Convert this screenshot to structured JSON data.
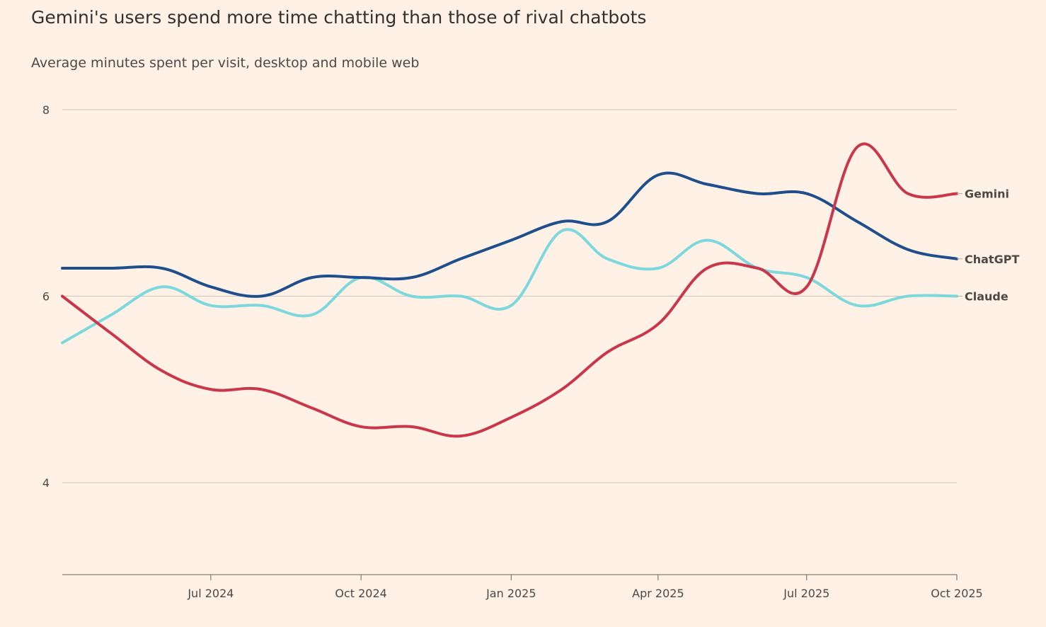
{
  "chart_data": {
    "type": "line",
    "title": "Gemini's users spend more time chatting than those of rival chatbots",
    "subtitle": "Average minutes spent per visit, desktop and mobile web",
    "xlabel": "",
    "ylabel": "",
    "ylim": [
      3,
      8
    ],
    "yticks": [
      {
        "value": 4,
        "label": "4"
      },
      {
        "value": 6,
        "label": "6"
      },
      {
        "value": 8,
        "label": "8"
      }
    ],
    "xlim": [
      "2024-04-01",
      "2025-10-01"
    ],
    "xticks": [
      {
        "date": "2024-07-01",
        "label": "Jul 2024"
      },
      {
        "date": "2024-10-01",
        "label": "Oct 2024"
      },
      {
        "date": "2025-01-01",
        "label": "Jan 2025"
      },
      {
        "date": "2025-04-01",
        "label": "Apr 2025"
      },
      {
        "date": "2025-07-01",
        "label": "Jul 2025"
      },
      {
        "date": "2025-10-01",
        "label": "Oct 2025"
      }
    ],
    "grid": true,
    "legend": "direct labels at line ends",
    "x": [
      "2024-04-01",
      "2024-05-01",
      "2024-06-01",
      "2024-07-01",
      "2024-08-01",
      "2024-09-01",
      "2024-10-01",
      "2024-11-01",
      "2024-12-01",
      "2025-01-01",
      "2025-02-01",
      "2025-03-01",
      "2025-04-01",
      "2025-05-01",
      "2025-06-01",
      "2025-07-01",
      "2025-08-01",
      "2025-09-01",
      "2025-10-01"
    ],
    "series": [
      {
        "name": "ChatGPT",
        "color": "#1f4e8c",
        "values": [
          6.3,
          6.3,
          6.3,
          6.1,
          6.0,
          6.2,
          6.2,
          6.2,
          6.4,
          6.6,
          6.8,
          6.8,
          7.3,
          7.2,
          7.1,
          7.1,
          6.8,
          6.5,
          6.4
        ]
      },
      {
        "name": "Gemini",
        "color": "#c8374a",
        "values": [
          6.0,
          5.6,
          5.2,
          5.0,
          5.0,
          4.8,
          4.6,
          4.6,
          4.5,
          4.7,
          5.0,
          5.4,
          5.7,
          6.3,
          6.3,
          6.1,
          7.6,
          7.1,
          7.1
        ]
      },
      {
        "name": "Claude",
        "color": "#7dd8dd",
        "values": [
          5.5,
          5.8,
          6.1,
          5.9,
          5.9,
          5.8,
          6.2,
          6.0,
          6.0,
          5.9,
          6.7,
          6.4,
          6.3,
          6.6,
          6.3,
          6.2,
          5.9,
          6.0,
          6.0
        ]
      }
    ]
  }
}
